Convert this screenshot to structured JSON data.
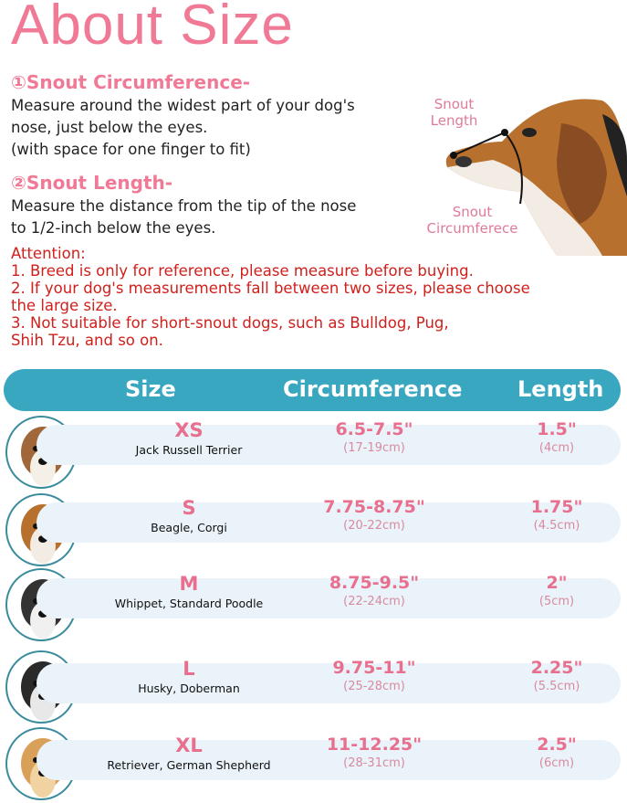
{
  "title": "About Size",
  "section1": {
    "heading": "①Snout Circumference-",
    "lines": [
      "Measure around the widest part of your dog's",
      "nose, just below the eyes.",
      "(with space for one finger to fit)"
    ]
  },
  "section2": {
    "heading": "②Snout Length-",
    "lines": [
      "Measure the distance from the tip of the nose",
      "to 1/2-inch below the eyes."
    ]
  },
  "diagram": {
    "length_label": "Snout\nLength",
    "circ_label": "Snout\nCircumferece"
  },
  "attention": {
    "heading": "Attention:",
    "items": [
      "1. Breed is only for reference, please measure before buying.",
      "2. If your dog's measurements fall between two sizes, please choose\nthe large size.",
      "3. Not suitable for short-snout dogs, such as Bulldog, Pug,\nShih Tzu, and so on."
    ]
  },
  "table": {
    "headers": [
      "Size",
      "Circumference",
      "Length"
    ],
    "rows": [
      {
        "size": "XS",
        "breed": "Jack Russell Terrier",
        "circ": "6.5-7.5\"",
        "circ_cm": "(17-19cm)",
        "len": "1.5\"",
        "len_cm": "(4cm)"
      },
      {
        "size": "S",
        "breed": "Beagle, Corgi",
        "circ": "7.75-8.75\"",
        "circ_cm": "(20-22cm)",
        "len": "1.75\"",
        "len_cm": "(4.5cm)"
      },
      {
        "size": "M",
        "breed": "Whippet,  Standard Poodle",
        "circ": "8.75-9.5\"",
        "circ_cm": "(22-24cm)",
        "len": "2\"",
        "len_cm": "(5cm)"
      },
      {
        "size": "L",
        "breed": "Husky, Doberman",
        "circ": "9.75-11\"",
        "circ_cm": "(25-28cm)",
        "len": "2.25\"",
        "len_cm": "(5.5cm)"
      },
      {
        "size": "XL",
        "breed": "Retriever, German Shepherd",
        "circ": "11-12.25\"",
        "circ_cm": "(28-31cm)",
        "len": "2.5\"",
        "len_cm": "(6cm)"
      }
    ]
  },
  "colors": {
    "title": "#f07a96",
    "attention": "#d0201c",
    "header": "#3aa7c0",
    "row": "#e9f3f9"
  }
}
